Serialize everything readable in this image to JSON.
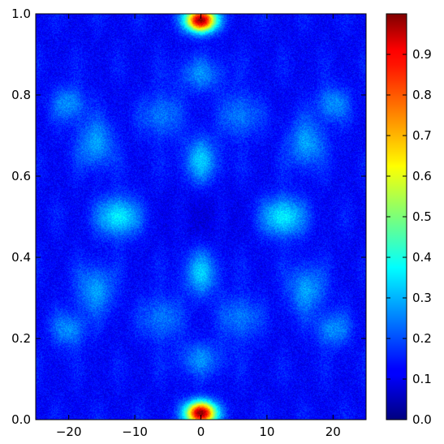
{
  "chart_data": {
    "type": "heatmap",
    "title": "",
    "xlabel": "",
    "ylabel": "",
    "colormap": "jet",
    "grid": false,
    "xlim": [
      -25,
      25
    ],
    "ylim": [
      0.0,
      1.0
    ],
    "clim": [
      0.0,
      1.0
    ],
    "x_ticks": [
      -20,
      -10,
      0,
      10,
      20
    ],
    "x_tick_labels": [
      "−20",
      "−10",
      "0",
      "10",
      "20"
    ],
    "y_ticks": [
      0.0,
      0.2,
      0.4,
      0.6,
      0.8,
      1.0
    ],
    "y_tick_labels": [
      "0.0",
      "0.2",
      "0.4",
      "0.6",
      "0.8",
      "1.0"
    ],
    "colorbar_ticks": [
      0.0,
      0.1,
      0.2,
      0.3,
      0.4,
      0.5,
      0.6,
      0.7,
      0.8,
      0.9
    ],
    "colorbar_tick_labels": [
      "0.0",
      "0.1",
      "0.2",
      "0.3",
      "0.4",
      "0.5",
      "0.6",
      "0.7",
      "0.8",
      "0.9"
    ],
    "background_level": 0.12,
    "hotspots": [
      {
        "x": 0,
        "y": 0.985,
        "value": 0.99,
        "sx": 1.6,
        "sy": 0.02
      },
      {
        "x": 0,
        "y": 0.015,
        "value": 0.99,
        "sx": 1.6,
        "sy": 0.02
      },
      {
        "x": -12.5,
        "y": 0.5,
        "value": 0.36,
        "sx": 2.2,
        "sy": 0.035
      },
      {
        "x": 12.5,
        "y": 0.5,
        "value": 0.36,
        "sx": 2.2,
        "sy": 0.035
      },
      {
        "x": 0,
        "y": 0.64,
        "value": 0.3,
        "sx": 1.8,
        "sy": 0.04
      },
      {
        "x": 0,
        "y": 0.36,
        "value": 0.3,
        "sx": 1.8,
        "sy": 0.04
      },
      {
        "x": -16,
        "y": 0.68,
        "value": 0.28,
        "sx": 2.0,
        "sy": 0.04
      },
      {
        "x": 16,
        "y": 0.68,
        "value": 0.28,
        "sx": 2.0,
        "sy": 0.04
      },
      {
        "x": -16,
        "y": 0.32,
        "value": 0.28,
        "sx": 2.0,
        "sy": 0.04
      },
      {
        "x": 16,
        "y": 0.32,
        "value": 0.28,
        "sx": 2.0,
        "sy": 0.04
      },
      {
        "x": -20,
        "y": 0.78,
        "value": 0.26,
        "sx": 1.8,
        "sy": 0.03
      },
      {
        "x": 20,
        "y": 0.78,
        "value": 0.26,
        "sx": 1.8,
        "sy": 0.03
      },
      {
        "x": -20,
        "y": 0.22,
        "value": 0.26,
        "sx": 1.8,
        "sy": 0.03
      },
      {
        "x": 20,
        "y": 0.22,
        "value": 0.26,
        "sx": 1.8,
        "sy": 0.03
      },
      {
        "x": -6,
        "y": 0.75,
        "value": 0.24,
        "sx": 2.0,
        "sy": 0.04
      },
      {
        "x": 6,
        "y": 0.75,
        "value": 0.24,
        "sx": 2.0,
        "sy": 0.04
      },
      {
        "x": -6,
        "y": 0.25,
        "value": 0.24,
        "sx": 2.0,
        "sy": 0.04
      },
      {
        "x": 6,
        "y": 0.25,
        "value": 0.24,
        "sx": 2.0,
        "sy": 0.04
      },
      {
        "x": 0,
        "y": 0.85,
        "value": 0.24,
        "sx": 2.5,
        "sy": 0.03
      },
      {
        "x": 0,
        "y": 0.15,
        "value": 0.24,
        "sx": 2.5,
        "sy": 0.03
      }
    ]
  }
}
